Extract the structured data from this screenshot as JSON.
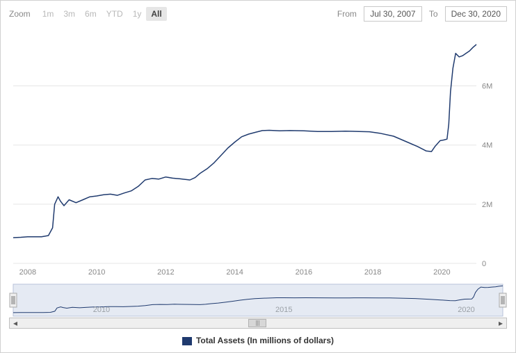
{
  "toolbar": {
    "zoom_label": "Zoom",
    "buttons": [
      {
        "label": "1m",
        "active": false
      },
      {
        "label": "3m",
        "active": false
      },
      {
        "label": "6m",
        "active": false
      },
      {
        "label": "YTD",
        "active": false
      },
      {
        "label": "1y",
        "active": false
      },
      {
        "label": "All",
        "active": true
      }
    ],
    "from_label": "From",
    "to_label": "To",
    "from_value": "Jul 30, 2007",
    "to_value": "Dec 30, 2020"
  },
  "chart": {
    "type": "line",
    "series_name": "Total Assets (In millions of dollars)",
    "series_color": "#1f3a6e",
    "grid_color": "#e5e5e5",
    "background_color": "#ffffff",
    "line_width": 1.5,
    "y": {
      "min": 0,
      "max": 7800000,
      "ticks": [
        0,
        2000000,
        4000000,
        6000000
      ],
      "tick_labels": [
        "0",
        "2M",
        "4M",
        "6M"
      ]
    },
    "x": {
      "min": 2007.58,
      "max": 2021.0,
      "ticks": [
        2008,
        2010,
        2012,
        2014,
        2016,
        2018,
        2020
      ],
      "tick_labels": [
        "2008",
        "2010",
        "2012",
        "2014",
        "2016",
        "2018",
        "2020"
      ]
    },
    "data": [
      [
        2007.58,
        870000
      ],
      [
        2007.8,
        880000
      ],
      [
        2008.0,
        900000
      ],
      [
        2008.2,
        900000
      ],
      [
        2008.4,
        900000
      ],
      [
        2008.6,
        940000
      ],
      [
        2008.72,
        1200000
      ],
      [
        2008.78,
        2000000
      ],
      [
        2008.88,
        2250000
      ],
      [
        2008.95,
        2100000
      ],
      [
        2009.05,
        1950000
      ],
      [
        2009.2,
        2150000
      ],
      [
        2009.4,
        2050000
      ],
      [
        2009.6,
        2150000
      ],
      [
        2009.8,
        2250000
      ],
      [
        2010.0,
        2280000
      ],
      [
        2010.2,
        2320000
      ],
      [
        2010.4,
        2340000
      ],
      [
        2010.6,
        2300000
      ],
      [
        2010.8,
        2380000
      ],
      [
        2011.0,
        2450000
      ],
      [
        2011.2,
        2600000
      ],
      [
        2011.4,
        2820000
      ],
      [
        2011.6,
        2870000
      ],
      [
        2011.8,
        2850000
      ],
      [
        2012.0,
        2920000
      ],
      [
        2012.2,
        2880000
      ],
      [
        2012.4,
        2860000
      ],
      [
        2012.7,
        2820000
      ],
      [
        2012.85,
        2900000
      ],
      [
        2013.0,
        3050000
      ],
      [
        2013.2,
        3200000
      ],
      [
        2013.4,
        3400000
      ],
      [
        2013.6,
        3650000
      ],
      [
        2013.8,
        3900000
      ],
      [
        2014.0,
        4100000
      ],
      [
        2014.2,
        4280000
      ],
      [
        2014.4,
        4370000
      ],
      [
        2014.6,
        4430000
      ],
      [
        2014.8,
        4490000
      ],
      [
        2015.0,
        4500000
      ],
      [
        2015.3,
        4480000
      ],
      [
        2015.6,
        4490000
      ],
      [
        2016.0,
        4480000
      ],
      [
        2016.4,
        4460000
      ],
      [
        2016.8,
        4460000
      ],
      [
        2017.2,
        4470000
      ],
      [
        2017.6,
        4460000
      ],
      [
        2017.9,
        4450000
      ],
      [
        2018.2,
        4400000
      ],
      [
        2018.6,
        4300000
      ],
      [
        2019.0,
        4100000
      ],
      [
        2019.3,
        3950000
      ],
      [
        2019.55,
        3800000
      ],
      [
        2019.7,
        3780000
      ],
      [
        2019.8,
        3950000
      ],
      [
        2019.95,
        4150000
      ],
      [
        2020.05,
        4170000
      ],
      [
        2020.15,
        4200000
      ],
      [
        2020.2,
        4700000
      ],
      [
        2020.25,
        5800000
      ],
      [
        2020.32,
        6600000
      ],
      [
        2020.4,
        7100000
      ],
      [
        2020.5,
        6980000
      ],
      [
        2020.6,
        7020000
      ],
      [
        2020.7,
        7100000
      ],
      [
        2020.8,
        7180000
      ],
      [
        2020.9,
        7300000
      ],
      [
        2021.0,
        7400000
      ]
    ]
  },
  "navigator": {
    "fill": "#cfd8ea",
    "fill_opacity": 0.55,
    "outline": "#b8c2d8",
    "line_color": "#1f3a6e",
    "handle_fill": "#efefef",
    "handle_stroke": "#a9a9a9",
    "ticks": [
      2010,
      2015,
      2020
    ],
    "tick_labels": [
      "2010",
      "2015",
      "2020"
    ]
  },
  "legend": {
    "label": "Total Assets (In millions of dollars)",
    "swatch_color": "#1f3a6e"
  }
}
